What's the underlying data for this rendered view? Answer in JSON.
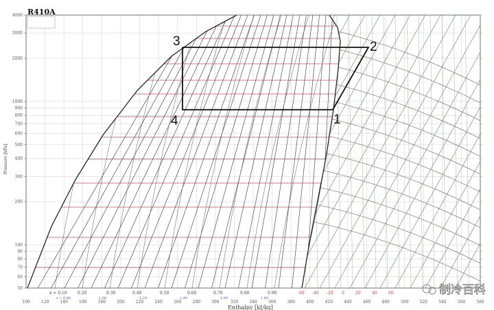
{
  "diagram": {
    "title": "R410A",
    "refrigerant": "R410A",
    "y_axis": {
      "label": "Pressure [kPa]",
      "scale": "log",
      "ticks": [
        "4000",
        "3000",
        "2000",
        "1000",
        "900",
        "800",
        "700",
        "600",
        "500",
        "400",
        "300",
        "200",
        "100",
        "90",
        "80",
        "70",
        "60",
        "50"
      ],
      "tick_values": [
        4000,
        3000,
        2000,
        1000,
        900,
        800,
        700,
        600,
        500,
        400,
        300,
        200,
        100,
        90,
        80,
        70,
        60,
        50
      ],
      "range": [
        50,
        4000
      ]
    },
    "x_axis": {
      "label": "Enthalpy [kJ/kg]",
      "ticks": [
        "100",
        "120",
        "140",
        "160",
        "180",
        "200",
        "220",
        "240",
        "260",
        "280",
        "300",
        "320",
        "340",
        "360",
        "380",
        "400",
        "420",
        "440",
        "460",
        "480",
        "500",
        "520",
        "540",
        "560",
        "580"
      ],
      "range": [
        100,
        580
      ]
    },
    "quality_labels": [
      "x = 0.10",
      "0.20",
      "0.30",
      "0.40",
      "0.50",
      "0.60",
      "0.70",
      "0.80",
      "0.90"
    ],
    "entropy_labels": [
      "s = 0.80",
      "1.00",
      "1.20",
      "1.40",
      "1.60",
      "1.80"
    ],
    "temperature_labels": [
      "-60",
      "-40",
      "-20",
      "0",
      "20",
      "40",
      "60"
    ],
    "cycle_points": [
      "1",
      "2",
      "3",
      "4"
    ],
    "watermark": "制冷百科",
    "colors": {
      "saturation": "#222222",
      "cycle": "#111111",
      "isotherm": "#c05060",
      "isentrope": "#5a8a5a",
      "entropy_label": "#4848b0",
      "grid": "#cfcfcf"
    }
  }
}
